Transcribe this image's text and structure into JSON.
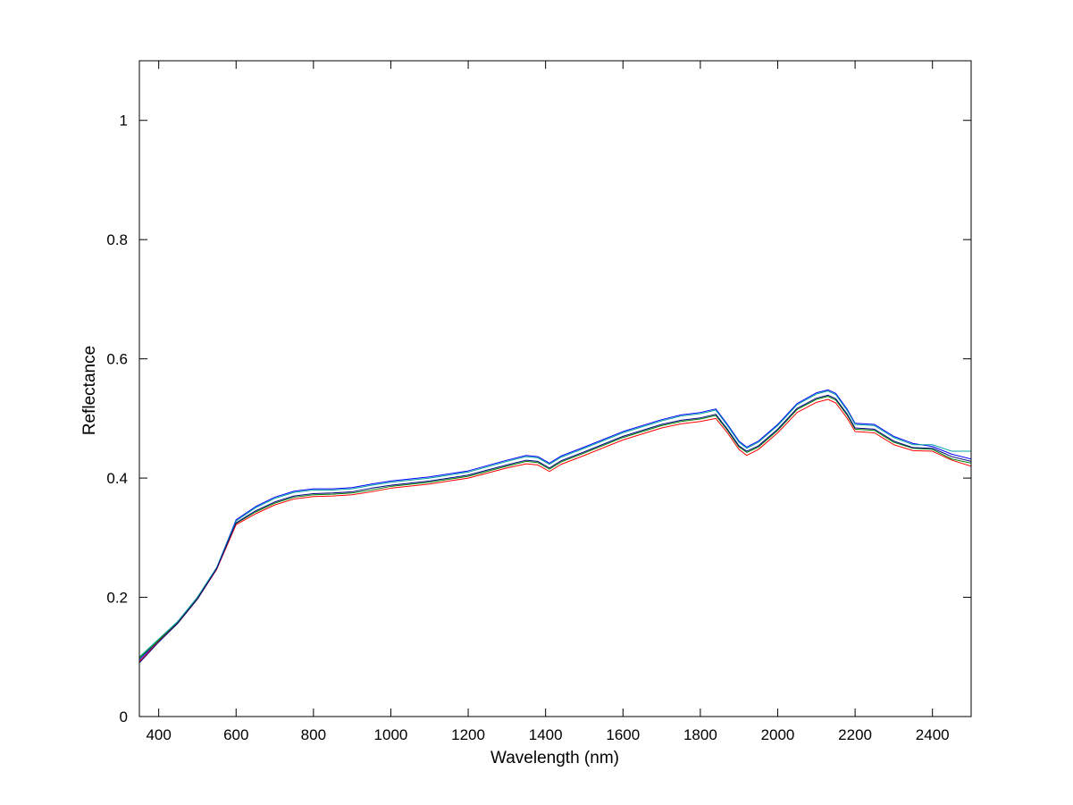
{
  "chart_data": {
    "type": "line",
    "xlabel": "Wavelength (nm)",
    "ylabel": "Reflectance",
    "xlim": [
      350,
      2500
    ],
    "ylim": [
      0,
      1.1
    ],
    "x_ticks": [
      400,
      600,
      800,
      1000,
      1200,
      1400,
      1600,
      1800,
      2000,
      2200,
      2400
    ],
    "y_ticks": [
      0,
      0.2,
      0.4,
      0.6,
      0.8,
      1
    ],
    "x_tick_labels": [
      "400",
      "600",
      "800",
      "1000",
      "1200",
      "1400",
      "1600",
      "1800",
      "2000",
      "2200",
      "2400"
    ],
    "y_tick_labels": [
      "0",
      "0.2",
      "0.4",
      "0.6",
      "0.8",
      "1"
    ],
    "grid": false,
    "legend": "none",
    "series": [
      {
        "color": "#0000ff",
        "x": [
          350,
          400,
          450,
          500,
          550,
          600,
          650,
          700,
          750,
          800,
          850,
          900,
          950,
          1000,
          1100,
          1200,
          1300,
          1350,
          1380,
          1410,
          1440,
          1500,
          1600,
          1700,
          1750,
          1800,
          1840,
          1870,
          1900,
          1920,
          1950,
          2000,
          2050,
          2100,
          2130,
          2150,
          2180,
          2200,
          2250,
          2300,
          2350,
          2400,
          2450,
          2500
        ],
        "y": [
          0.095,
          0.128,
          0.16,
          0.2,
          0.25,
          0.33,
          0.352,
          0.368,
          0.378,
          0.382,
          0.382,
          0.384,
          0.39,
          0.395,
          0.402,
          0.412,
          0.43,
          0.438,
          0.436,
          0.425,
          0.437,
          0.452,
          0.478,
          0.498,
          0.506,
          0.51,
          0.516,
          0.49,
          0.462,
          0.452,
          0.462,
          0.49,
          0.525,
          0.543,
          0.548,
          0.542,
          0.515,
          0.492,
          0.49,
          0.47,
          0.458,
          0.453,
          0.44,
          0.432
        ]
      },
      {
        "color": "#00a0a0",
        "x": [
          350,
          400,
          450,
          500,
          550,
          600,
          650,
          700,
          750,
          800,
          850,
          900,
          950,
          1000,
          1100,
          1200,
          1300,
          1350,
          1380,
          1410,
          1440,
          1500,
          1600,
          1700,
          1750,
          1800,
          1840,
          1870,
          1900,
          1920,
          1950,
          2000,
          2050,
          2100,
          2130,
          2150,
          2180,
          2200,
          2250,
          2300,
          2350,
          2400,
          2450,
          2500
        ],
        "y": [
          0.1,
          0.13,
          0.16,
          0.2,
          0.25,
          0.328,
          0.35,
          0.366,
          0.376,
          0.38,
          0.38,
          0.382,
          0.388,
          0.393,
          0.4,
          0.41,
          0.428,
          0.436,
          0.434,
          0.423,
          0.435,
          0.45,
          0.476,
          0.496,
          0.504,
          0.508,
          0.514,
          0.488,
          0.46,
          0.45,
          0.46,
          0.488,
          0.523,
          0.541,
          0.546,
          0.54,
          0.513,
          0.49,
          0.488,
          0.468,
          0.456,
          0.456,
          0.445,
          0.445
        ]
      },
      {
        "color": "#008000",
        "x": [
          350,
          400,
          450,
          500,
          550,
          600,
          650,
          700,
          750,
          800,
          850,
          900,
          950,
          1000,
          1100,
          1200,
          1300,
          1350,
          1380,
          1410,
          1440,
          1500,
          1600,
          1700,
          1750,
          1800,
          1840,
          1870,
          1900,
          1920,
          1950,
          2000,
          2050,
          2100,
          2130,
          2150,
          2180,
          2200,
          2250,
          2300,
          2350,
          2400,
          2450,
          2500
        ],
        "y": [
          0.098,
          0.128,
          0.158,
          0.198,
          0.248,
          0.324,
          0.343,
          0.358,
          0.368,
          0.372,
          0.373,
          0.375,
          0.38,
          0.386,
          0.393,
          0.403,
          0.42,
          0.428,
          0.426,
          0.415,
          0.427,
          0.442,
          0.468,
          0.488,
          0.495,
          0.499,
          0.505,
          0.48,
          0.452,
          0.443,
          0.452,
          0.48,
          0.515,
          0.532,
          0.537,
          0.531,
          0.505,
          0.482,
          0.48,
          0.46,
          0.45,
          0.448,
          0.432,
          0.425
        ]
      },
      {
        "color": "#ff0000",
        "x": [
          350,
          400,
          450,
          500,
          550,
          600,
          650,
          700,
          750,
          800,
          850,
          900,
          950,
          1000,
          1100,
          1200,
          1300,
          1350,
          1380,
          1410,
          1440,
          1500,
          1600,
          1700,
          1750,
          1800,
          1840,
          1870,
          1900,
          1920,
          1950,
          2000,
          2050,
          2100,
          2130,
          2150,
          2180,
          2200,
          2250,
          2300,
          2350,
          2400,
          2450,
          2500
        ],
        "y": [
          0.092,
          0.126,
          0.157,
          0.197,
          0.247,
          0.322,
          0.34,
          0.355,
          0.365,
          0.369,
          0.37,
          0.372,
          0.377,
          0.383,
          0.39,
          0.4,
          0.417,
          0.424,
          0.422,
          0.411,
          0.423,
          0.438,
          0.464,
          0.484,
          0.491,
          0.495,
          0.5,
          0.476,
          0.448,
          0.438,
          0.448,
          0.476,
          0.51,
          0.527,
          0.532,
          0.526,
          0.5,
          0.478,
          0.476,
          0.456,
          0.446,
          0.445,
          0.43,
          0.42
        ]
      },
      {
        "color": "#000080",
        "x": [
          350,
          400,
          450,
          500,
          550,
          600,
          650,
          700,
          750,
          800,
          850,
          900,
          950,
          1000,
          1100,
          1200,
          1300,
          1350,
          1380,
          1410,
          1440,
          1500,
          1600,
          1700,
          1750,
          1800,
          1840,
          1870,
          1900,
          1920,
          1950,
          2000,
          2050,
          2100,
          2130,
          2150,
          2180,
          2200,
          2250,
          2300,
          2350,
          2400,
          2450,
          2500
        ],
        "y": [
          0.09,
          0.125,
          0.157,
          0.197,
          0.248,
          0.325,
          0.345,
          0.36,
          0.37,
          0.374,
          0.375,
          0.377,
          0.383,
          0.388,
          0.395,
          0.405,
          0.422,
          0.43,
          0.428,
          0.417,
          0.429,
          0.444,
          0.47,
          0.49,
          0.497,
          0.501,
          0.507,
          0.482,
          0.454,
          0.445,
          0.454,
          0.482,
          0.517,
          0.534,
          0.539,
          0.533,
          0.507,
          0.484,
          0.482,
          0.462,
          0.451,
          0.45,
          0.436,
          0.428
        ]
      }
    ]
  }
}
